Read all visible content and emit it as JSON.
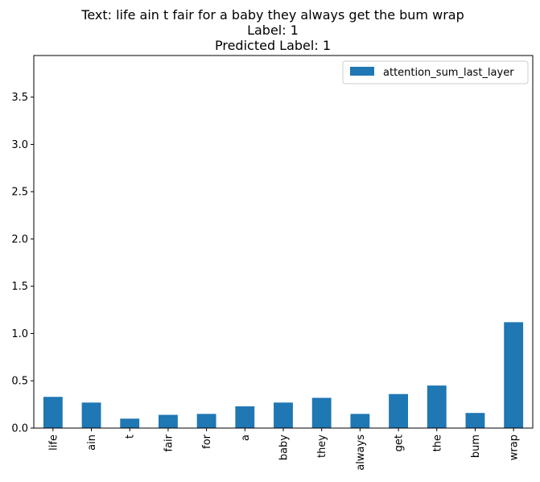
{
  "chart_data": {
    "type": "bar",
    "title_lines": [
      "Text: life ain t fair for a baby they always get the bum wrap",
      "Label: 1",
      "Predicted Label: 1"
    ],
    "xlabel": "",
    "ylabel": "",
    "categories": [
      "life",
      "ain",
      "t",
      "fair",
      "for",
      "a",
      "baby",
      "they",
      "always",
      "get",
      "the",
      "bum",
      "wrap"
    ],
    "series": [
      {
        "name": "attention_sum_last_layer",
        "color": "#1f77b4",
        "values": [
          0.33,
          0.27,
          0.1,
          0.14,
          0.15,
          0.23,
          0.27,
          0.32,
          0.15,
          0.36,
          0.45,
          0.16,
          1.12
        ]
      }
    ],
    "ylim": [
      0,
      3.94
    ],
    "yticks": [
      0.0,
      0.5,
      1.0,
      1.5,
      2.0,
      2.5,
      3.0,
      3.5
    ],
    "ytick_labels": [
      "0.0",
      "0.5",
      "1.0",
      "1.5",
      "2.0",
      "2.5",
      "3.0",
      "3.5"
    ],
    "grid": false,
    "legend_position": "top-right"
  }
}
